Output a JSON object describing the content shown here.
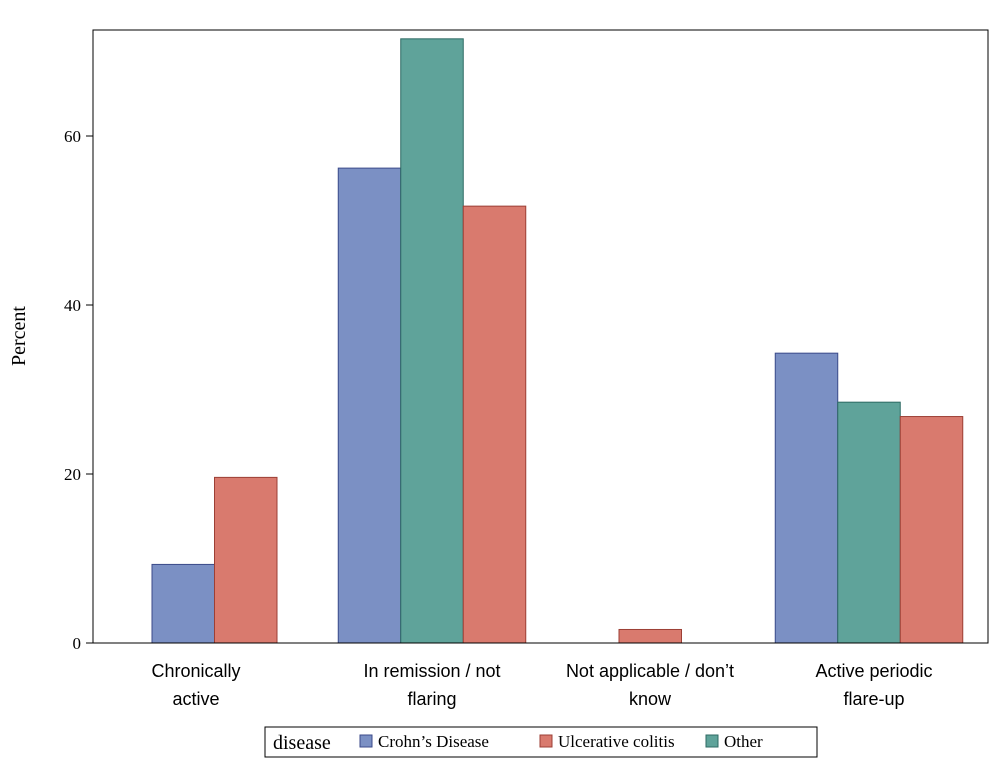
{
  "chart_data": {
    "type": "bar",
    "ylabel": "Percent",
    "xlabel": "",
    "ylim": [
      0,
      72
    ],
    "yticks": [
      "0",
      "20",
      "40",
      "60"
    ],
    "categories": [
      [
        "Chronically",
        "active"
      ],
      [
        "In remission / not",
        "flaring"
      ],
      [
        "Not applicable / don’t",
        "know"
      ],
      [
        "Active periodic",
        "flare-up"
      ]
    ],
    "series": [
      {
        "name": "Crohn’s Disease",
        "color": "#7b90c4",
        "stroke": "#3b4a8a",
        "values": [
          9.3,
          56.2,
          0,
          34.3
        ]
      },
      {
        "name": "Other",
        "color": "#5fa39a",
        "stroke": "#2d6a63",
        "values": [
          0,
          71.5,
          0,
          28.5
        ]
      },
      {
        "name": "Ulcerative colitis",
        "color": "#d97a6e",
        "stroke": "#9c3f35",
        "values": [
          19.6,
          51.7,
          1.6,
          26.8
        ]
      }
    ],
    "legend": {
      "title": "disease",
      "position": "bottom",
      "order": [
        "Crohn’s Disease",
        "Ulcerative colitis",
        "Other"
      ]
    },
    "grid": false
  }
}
